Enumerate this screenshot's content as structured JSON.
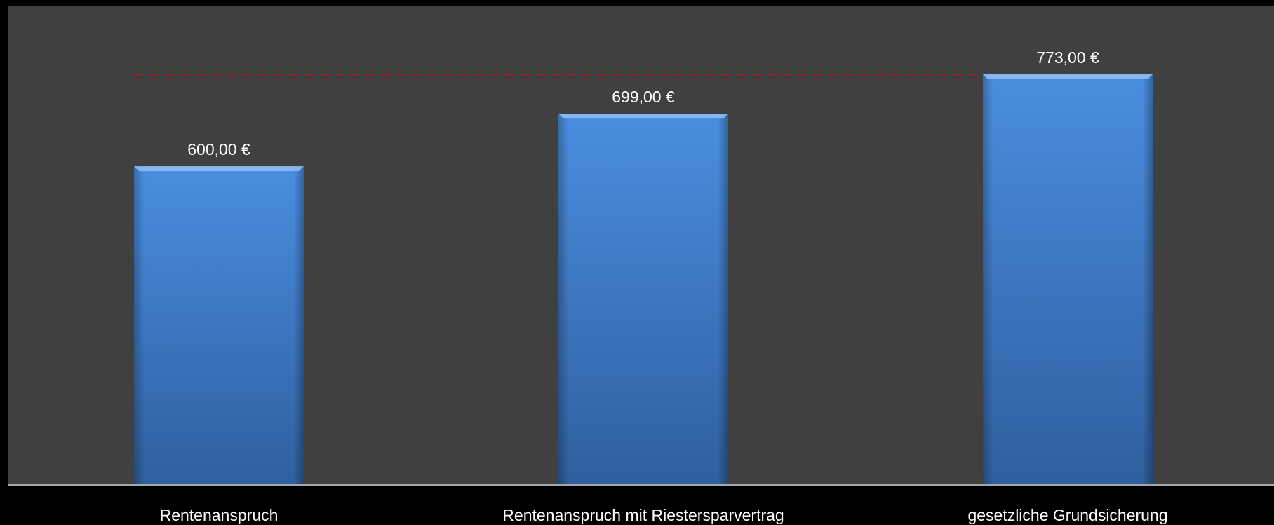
{
  "chart_data": {
    "type": "bar",
    "title": "",
    "xlabel": "",
    "ylabel": "",
    "categories": [
      "Rentenanspruch",
      "Rentenanspruch mit Riestersparvertrag",
      "gesetzliche Grundsicherung"
    ],
    "values": [
      600,
      699,
      773
    ],
    "value_labels": [
      "600,00 €",
      "699,00 €",
      "773,00 €"
    ],
    "ylim": [
      0,
      900
    ],
    "grid": false,
    "legend": "none",
    "reference_line": {
      "value": 773,
      "style": "dashed",
      "color": "#c0141c"
    },
    "colors": {
      "plot_background": "#404040",
      "page_background": "#000000",
      "bar_top": "#4a8ee0",
      "bar_bottom": "#2f5f9e",
      "axis_line": "#a6a6a6",
      "text": "#ffffff"
    }
  }
}
